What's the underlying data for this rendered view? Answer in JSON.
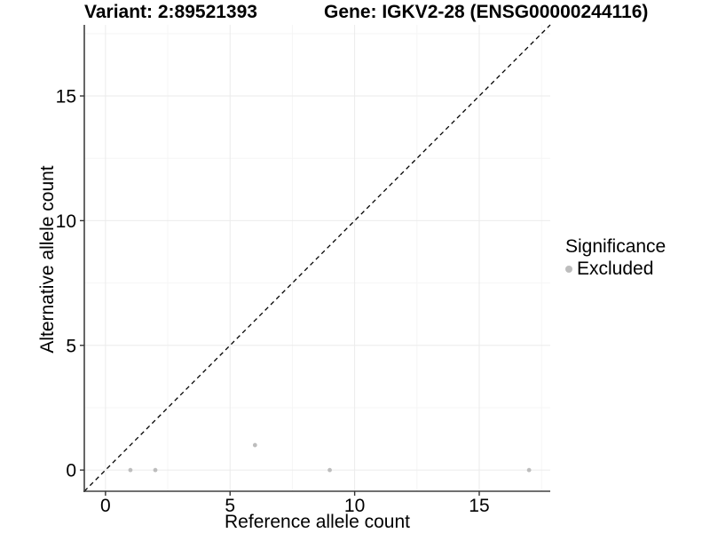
{
  "chart_data": {
    "type": "scatter",
    "titles": {
      "left": "Variant: 2:89521393",
      "right": "Gene: IGKV2-28 (ENSG00000244116)"
    },
    "xlabel": "Reference allele count",
    "ylabel": "Alternative allele count",
    "xlim": [
      -0.85,
      17.85
    ],
    "ylim": [
      -0.85,
      17.85
    ],
    "x_major_ticks": [
      0,
      5,
      10,
      15
    ],
    "y_major_ticks": [
      0,
      5,
      10,
      15
    ],
    "x_minor_ticks": [
      2.5,
      7.5,
      12.5,
      17.5
    ],
    "y_minor_ticks": [
      2.5,
      7.5,
      12.5,
      17.5
    ],
    "grid": "major+minor",
    "series": [
      {
        "name": "Excluded",
        "color": "#bdbdbd",
        "points": [
          [
            1,
            0
          ],
          [
            2,
            0
          ],
          [
            6,
            1
          ],
          [
            9,
            0
          ],
          [
            17,
            0
          ]
        ]
      }
    ],
    "reference_line": {
      "style": "dashed",
      "slope": 1,
      "intercept": 0,
      "color": "#000000"
    },
    "legend": {
      "title": "Significance",
      "position": "right",
      "items": [
        {
          "label": "Excluded",
          "color": "#bdbdbd",
          "marker": "circle"
        }
      ]
    },
    "colors": {
      "background": "#ffffff",
      "grid_major": "#ebebeb",
      "grid_minor": "#f5f5f5",
      "axis_line": "#404040",
      "tick": "#333333",
      "text": "#000000"
    }
  }
}
